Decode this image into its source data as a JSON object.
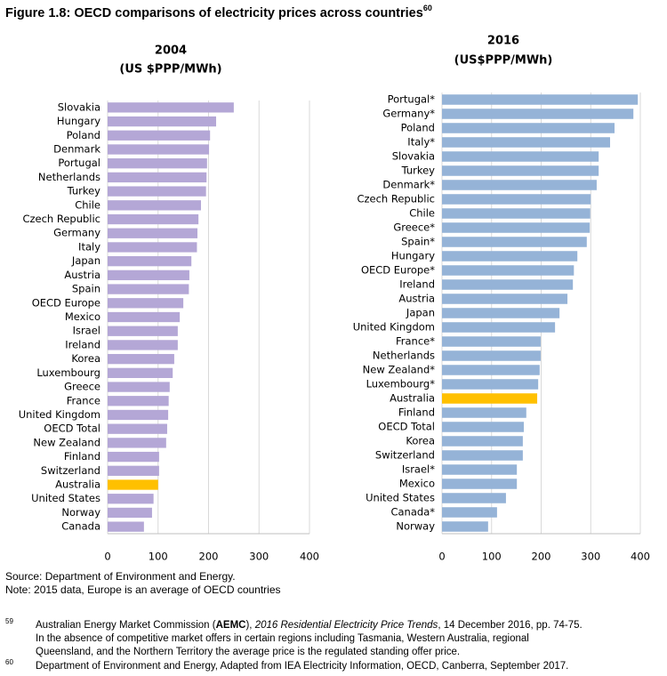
{
  "figure": {
    "title": "Figure 1.8: OECD comparisons of electricity prices across countries",
    "superscript": "60"
  },
  "chart_data": [
    {
      "type": "bar",
      "orientation": "horizontal",
      "title": "2004",
      "subtitle": "(US $PPP/MWh)",
      "categories": [
        "Slovakia",
        "Hungary",
        "Poland",
        "Denmark",
        "Portugal",
        "Netherlands",
        "Turkey",
        "Chile",
        "Czech Republic",
        "Germany",
        "Italy",
        "Japan",
        "Austria",
        "Spain",
        "OECD Europe",
        "Mexico",
        "Israel",
        "Ireland",
        "Korea",
        "Luxembourg",
        "Greece",
        "France",
        "United Kingdom",
        "OECD Total",
        "New Zealand",
        "Finland",
        "Switzerland",
        "Australia",
        "United States",
        "Norway",
        "Canada"
      ],
      "values": [
        250,
        215,
        203,
        201,
        197,
        196,
        195,
        185,
        180,
        178,
        177,
        166,
        162,
        161,
        150,
        143,
        139,
        139,
        132,
        129,
        123,
        121,
        120,
        118,
        116,
        102,
        102,
        100,
        91,
        88,
        72
      ],
      "colors": [
        "#b4a7d6",
        "#b4a7d6",
        "#b4a7d6",
        "#b4a7d6",
        "#b4a7d6",
        "#b4a7d6",
        "#b4a7d6",
        "#b4a7d6",
        "#b4a7d6",
        "#b4a7d6",
        "#b4a7d6",
        "#b4a7d6",
        "#b4a7d6",
        "#b4a7d6",
        "#b4a7d6",
        "#b4a7d6",
        "#b4a7d6",
        "#b4a7d6",
        "#b4a7d6",
        "#b4a7d6",
        "#b4a7d6",
        "#b4a7d6",
        "#b4a7d6",
        "#b4a7d6",
        "#b4a7d6",
        "#b4a7d6",
        "#b4a7d6",
        "#ffc000",
        "#b4a7d6",
        "#b4a7d6",
        "#b4a7d6"
      ],
      "xlim": [
        0,
        400
      ],
      "xticks": [
        0,
        100,
        200,
        300,
        400
      ],
      "grid": true
    },
    {
      "type": "bar",
      "orientation": "horizontal",
      "title": "2016",
      "subtitle": "(US$PPP/MWh)",
      "categories": [
        "Portugal*",
        "Germany*",
        "Poland",
        "Italy*",
        "Slovakia",
        "Turkey",
        "Denmark*",
        "Czech Republic",
        "Chile",
        "Greece*",
        "Spain*",
        "Hungary",
        "OECD Europe*",
        "Ireland",
        "Austria",
        "Japan",
        "United Kingdom",
        "France*",
        "Netherlands",
        "New Zealand*",
        "Luxembourg*",
        "Australia",
        "Finland",
        "OECD Total",
        "Korea",
        "Switzerland",
        "Israel*",
        "Mexico",
        "United States",
        "Canada*",
        "Norway"
      ],
      "values": [
        395,
        386,
        348,
        339,
        316,
        316,
        312,
        300,
        299,
        298,
        292,
        273,
        266,
        264,
        253,
        237,
        228,
        199,
        199,
        197,
        194,
        192,
        170,
        165,
        163,
        163,
        151,
        151,
        129,
        111,
        93
      ],
      "colors": [
        "#95b3d7",
        "#95b3d7",
        "#95b3d7",
        "#95b3d7",
        "#95b3d7",
        "#95b3d7",
        "#95b3d7",
        "#95b3d7",
        "#95b3d7",
        "#95b3d7",
        "#95b3d7",
        "#95b3d7",
        "#95b3d7",
        "#95b3d7",
        "#95b3d7",
        "#95b3d7",
        "#95b3d7",
        "#95b3d7",
        "#95b3d7",
        "#95b3d7",
        "#95b3d7",
        "#ffc000",
        "#95b3d7",
        "#95b3d7",
        "#95b3d7",
        "#95b3d7",
        "#95b3d7",
        "#95b3d7",
        "#95b3d7",
        "#95b3d7",
        "#95b3d7"
      ],
      "xlim": [
        0,
        400
      ],
      "xticks": [
        0,
        100,
        200,
        300,
        400
      ],
      "grid": true
    }
  ],
  "notes": [
    "Source: Department of Environment and Energy.",
    "Note: 2015 data, Europe is an average of OECD countries"
  ],
  "footnotes": [
    {
      "marker": "59",
      "lines": [
        [
          "Australian Energy Market Commission (",
          "AEMC",
          "), ",
          "2016 Residential Electricity Price Trends",
          ", 14 December 2016, pp. 74-75."
        ],
        [
          "In the absence of competitive market offers in certain regions including Tasmania, Western Australia, regional"
        ],
        [
          "Queensland, and the Northern Territory the average price is the regulated standing offer price."
        ]
      ]
    },
    {
      "marker": "60",
      "lines": [
        [
          "Department of Environment and Energy, Adapted from IEA Electricity Information, OECD, Canberra, September 2017."
        ]
      ]
    }
  ]
}
